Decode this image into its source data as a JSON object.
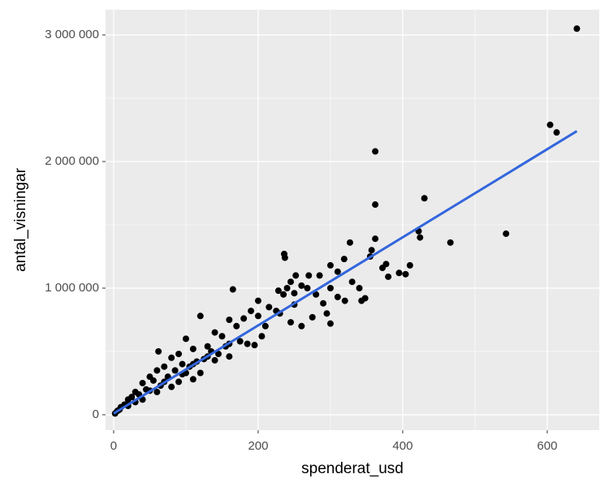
{
  "chart_data": {
    "type": "scatter",
    "x_label": "spenderat_usd",
    "y_label": "antal_visningar",
    "xlim": [
      -11.2,
      672
    ],
    "ylim": [
      -122000,
      3199000
    ],
    "xticks": [
      0,
      200,
      400,
      600
    ],
    "yticks": [
      {
        "value": 0,
        "label": "0"
      },
      {
        "value": 1000000,
        "label": "1 000 000"
      },
      {
        "value": 2000000,
        "label": "2 000 000"
      },
      {
        "value": 3000000,
        "label": "3 000 000"
      }
    ],
    "grid": true,
    "point_color": "#000000",
    "x": [
      641,
      604,
      613,
      362,
      362,
      430,
      422,
      424,
      466,
      543,
      362,
      327,
      357,
      236,
      237,
      165,
      300,
      348,
      343,
      380,
      395,
      404,
      372,
      377,
      319,
      355,
      300,
      310,
      270,
      252,
      245,
      240,
      260,
      228,
      235,
      250,
      280,
      290,
      295,
      275,
      260,
      245,
      230,
      215,
      200,
      210,
      190,
      180,
      170,
      160,
      150,
      140,
      120,
      130,
      110,
      100,
      90,
      80,
      70,
      60,
      50,
      40,
      30,
      20,
      10,
      5,
      2,
      15,
      25,
      35,
      45,
      55,
      65,
      75,
      85,
      95,
      105,
      115,
      125,
      135,
      145,
      155,
      175,
      185,
      195,
      205,
      62,
      100,
      110,
      120,
      90,
      40,
      60,
      80,
      140,
      160,
      225,
      300,
      330,
      340,
      310,
      320,
      285,
      200,
      250,
      268,
      410,
      160,
      130,
      110,
      95,
      70,
      50,
      30,
      20,
      8
    ],
    "values": [
      3050000,
      2290000,
      2230000,
      2080000,
      1660000,
      1710000,
      1450000,
      1400000,
      1360000,
      1430000,
      1390000,
      1360000,
      1300000,
      1270000,
      1240000,
      990000,
      720000,
      920000,
      900000,
      1090000,
      1120000,
      1110000,
      1160000,
      1190000,
      1230000,
      1250000,
      1180000,
      1130000,
      1100000,
      1100000,
      1050000,
      1000000,
      1020000,
      980000,
      950000,
      870000,
      950000,
      880000,
      800000,
      770000,
      700000,
      730000,
      800000,
      850000,
      900000,
      700000,
      820000,
      760000,
      700000,
      750000,
      620000,
      650000,
      780000,
      540000,
      520000,
      600000,
      480000,
      450000,
      380000,
      350000,
      300000,
      250000,
      180000,
      120000,
      60000,
      30000,
      10000,
      80000,
      140000,
      160000,
      200000,
      270000,
      230000,
      300000,
      350000,
      400000,
      380000,
      420000,
      440000,
      500000,
      480000,
      540000,
      580000,
      560000,
      550000,
      620000,
      500000,
      330000,
      280000,
      330000,
      260000,
      120000,
      180000,
      220000,
      430000,
      460000,
      820000,
      1000000,
      1050000,
      1000000,
      930000,
      900000,
      1100000,
      780000,
      960000,
      1000000,
      1180000,
      560000,
      460000,
      400000,
      320000,
      260000,
      190000,
      100000,
      70000,
      40000
    ],
    "trend": {
      "x": [
        0,
        641
      ],
      "values": [
        10000,
        2240000
      ],
      "color": "#3366dd"
    }
  }
}
